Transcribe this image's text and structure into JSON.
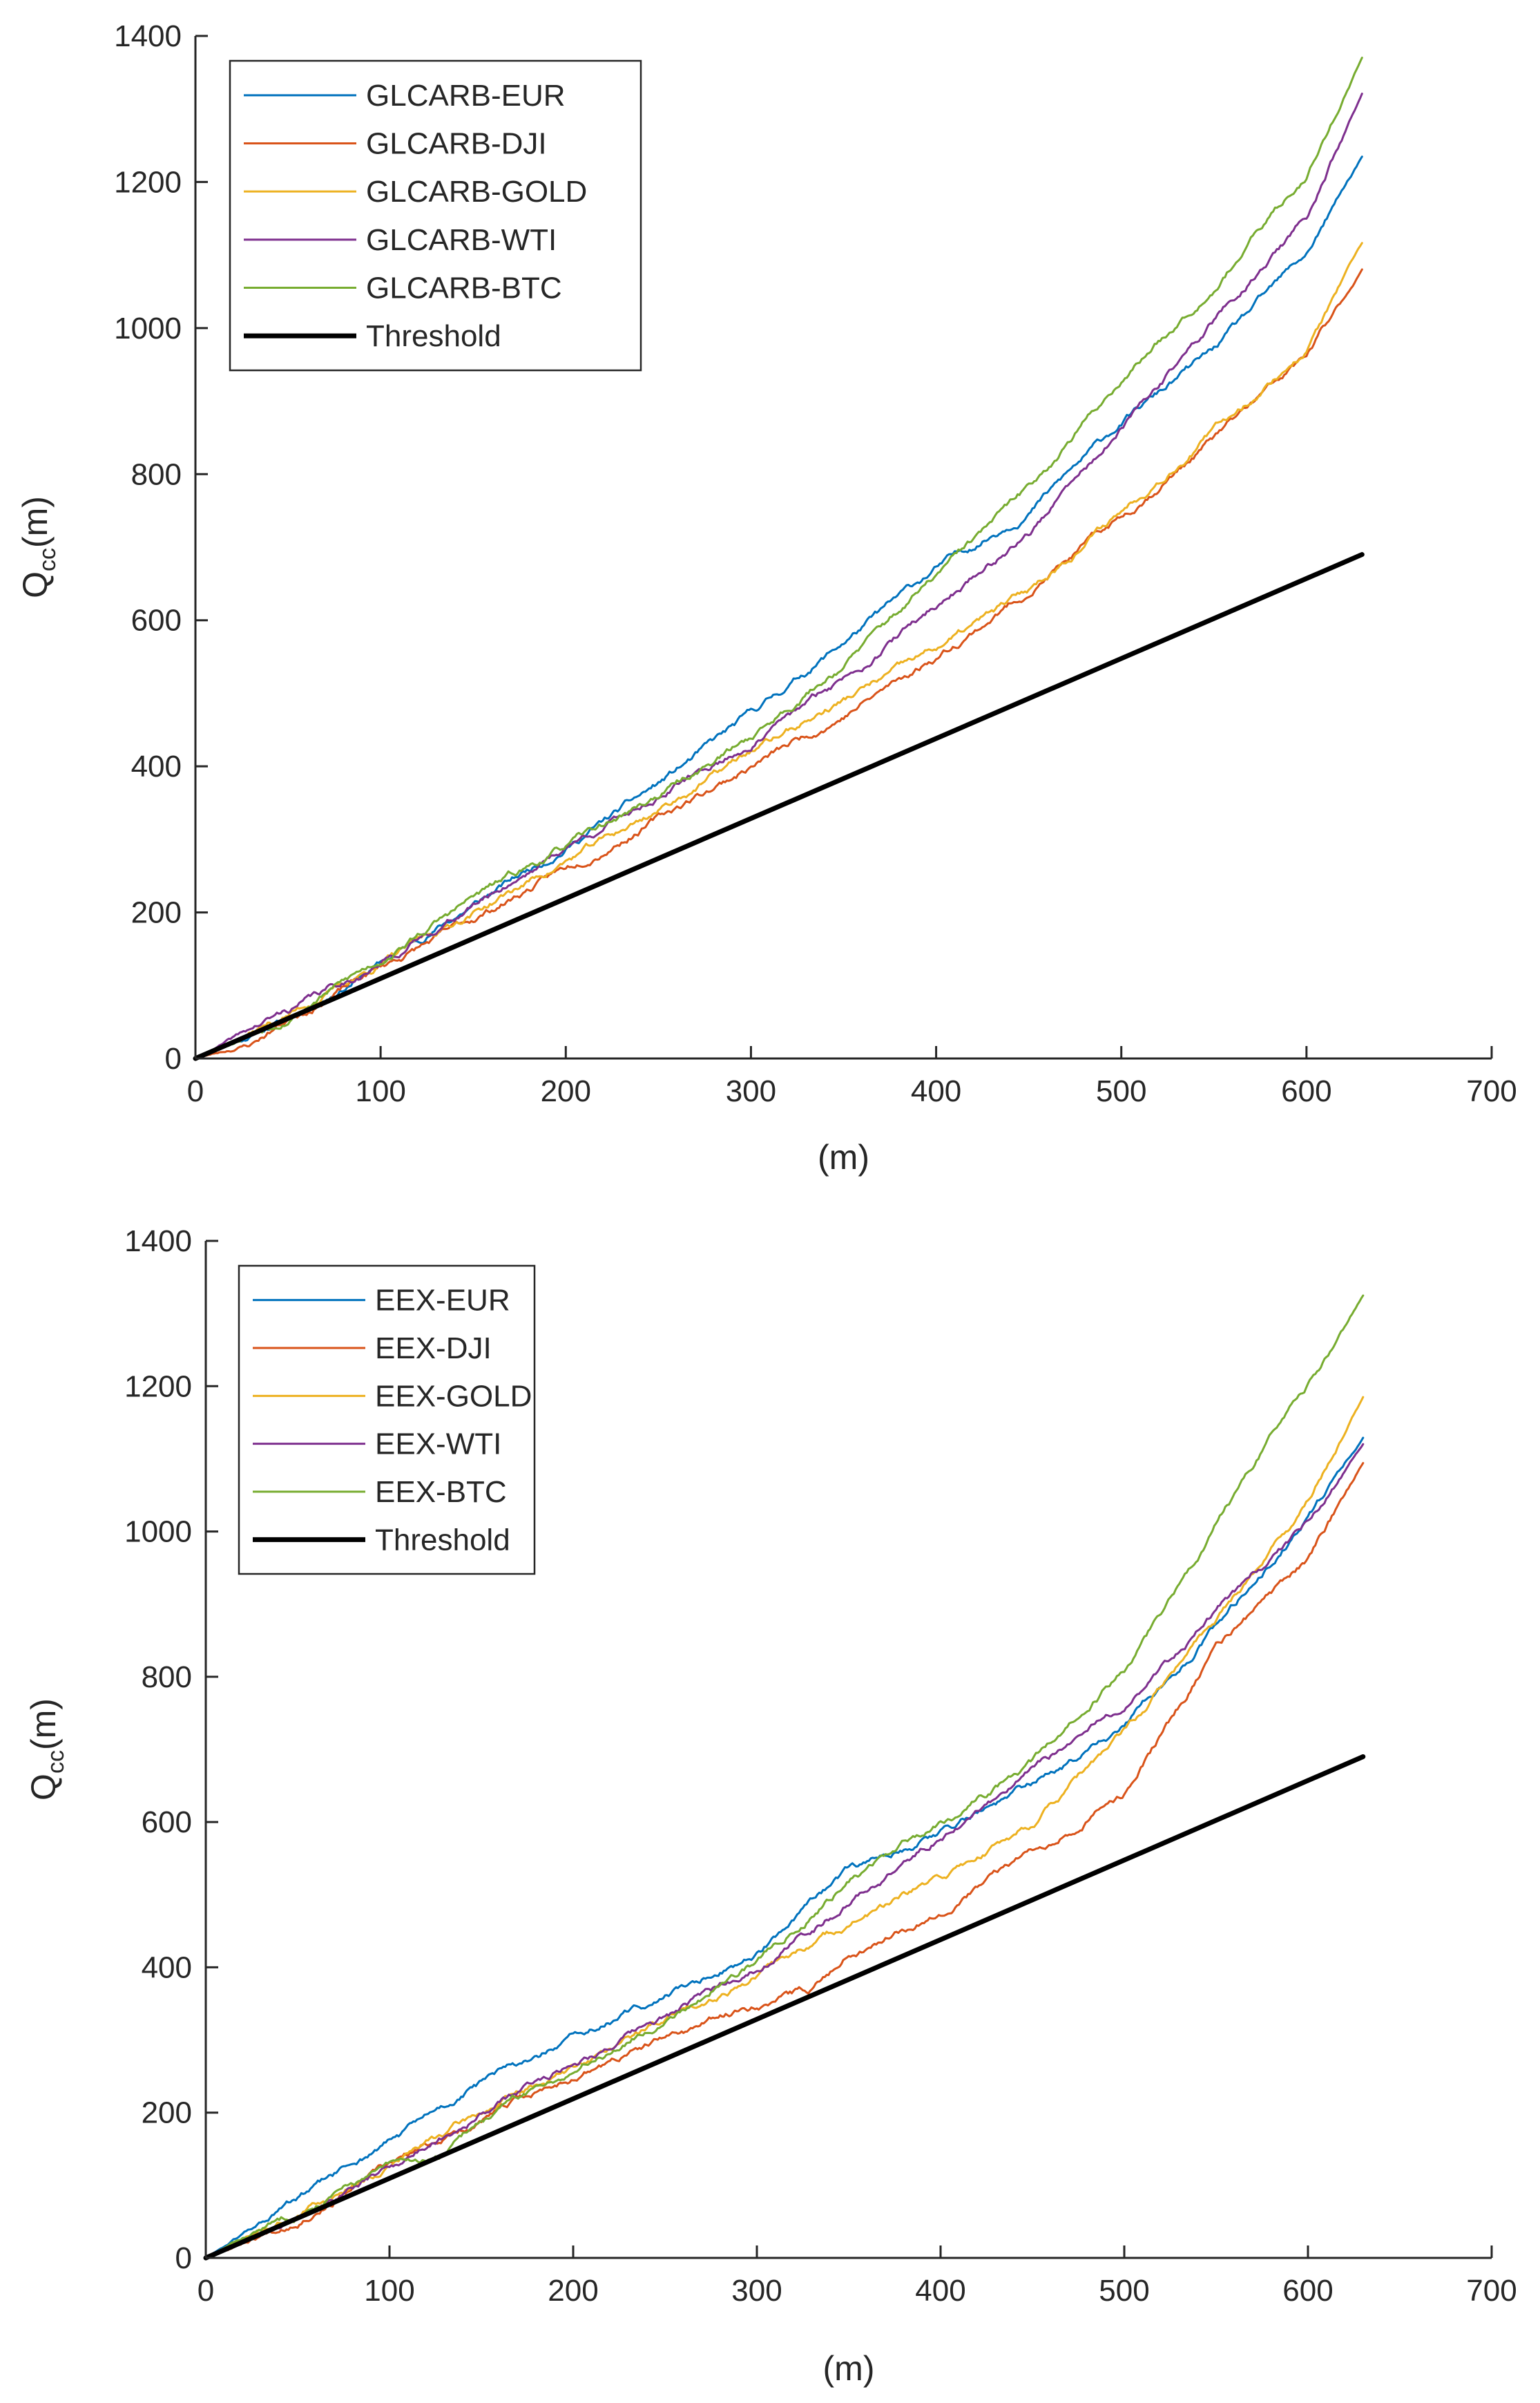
{
  "chart_data": [
    {
      "type": "line",
      "title": "",
      "xlabel": "(m)",
      "ylabel": {
        "main": "Q",
        "sub": "cc",
        "suffix": "(m)"
      },
      "xlim": [
        0,
        700
      ],
      "ylim": [
        0,
        1400
      ],
      "xticks": [
        "0",
        "100",
        "200",
        "300",
        "400",
        "500",
        "600",
        "700"
      ],
      "yticks": [
        "0",
        "200",
        "400",
        "600",
        "800",
        "1000",
        "1200",
        "1400"
      ],
      "grid": false,
      "legend_position": "top-left",
      "series": [
        {
          "name": "GLCARB-EUR",
          "color": "#0072BD",
          "seed": 11,
          "points": [
            [
              0,
              0
            ],
            [
              50,
              55
            ],
            [
              100,
              130
            ],
            [
              150,
              210
            ],
            [
              200,
              290
            ],
            [
              250,
              375
            ],
            [
              300,
              470
            ],
            [
              350,
              570
            ],
            [
              400,
              670
            ],
            [
              450,
              750
            ],
            [
              500,
              870
            ],
            [
              550,
              970
            ],
            [
              600,
              1100
            ],
            [
              630,
              1235
            ]
          ]
        },
        {
          "name": "GLCARB-DJI",
          "color": "#D95319",
          "seed": 23,
          "points": [
            [
              0,
              0
            ],
            [
              30,
              20
            ],
            [
              50,
              55
            ],
            [
              100,
              125
            ],
            [
              150,
              190
            ],
            [
              200,
              260
            ],
            [
              250,
              330
            ],
            [
              300,
              400
            ],
            [
              350,
              470
            ],
            [
              400,
              550
            ],
            [
              450,
              640
            ],
            [
              500,
              740
            ],
            [
              550,
              850
            ],
            [
              600,
              960
            ],
            [
              630,
              1080
            ]
          ]
        },
        {
          "name": "GLCARB-GOLD",
          "color": "#EDB120",
          "seed": 37,
          "points": [
            [
              0,
              0
            ],
            [
              50,
              60
            ],
            [
              100,
              130
            ],
            [
              150,
              200
            ],
            [
              200,
              270
            ],
            [
              250,
              340
            ],
            [
              300,
              420
            ],
            [
              350,
              490
            ],
            [
              400,
              560
            ],
            [
              450,
              640
            ],
            [
              500,
              750
            ],
            [
              550,
              860
            ],
            [
              600,
              970
            ],
            [
              630,
              1115
            ]
          ]
        },
        {
          "name": "GLCARB-WTI",
          "color": "#7E2F8E",
          "seed": 41,
          "points": [
            [
              0,
              0
            ],
            [
              50,
              65
            ],
            [
              100,
              130
            ],
            [
              150,
              210
            ],
            [
              200,
              290
            ],
            [
              250,
              360
            ],
            [
              300,
              430
            ],
            [
              350,
              520
            ],
            [
              400,
              620
            ],
            [
              450,
              720
            ],
            [
              500,
              860
            ],
            [
              550,
              1010
            ],
            [
              600,
              1150
            ],
            [
              630,
              1320
            ]
          ]
        },
        {
          "name": "GLCARB-BTC",
          "color": "#77AC30",
          "seed": 53,
          "points": [
            [
              0,
              0
            ],
            [
              50,
              60
            ],
            [
              100,
              135
            ],
            [
              150,
              220
            ],
            [
              200,
              290
            ],
            [
              250,
              360
            ],
            [
              300,
              440
            ],
            [
              350,
              540
            ],
            [
              400,
              660
            ],
            [
              450,
              780
            ],
            [
              500,
              930
            ],
            [
              550,
              1060
            ],
            [
              600,
              1210
            ],
            [
              630,
              1370
            ]
          ]
        },
        {
          "name": "Threshold",
          "color": "#000000",
          "threshold": true,
          "points": [
            [
              0,
              0
            ],
            [
              630,
              690
            ]
          ]
        }
      ]
    },
    {
      "type": "line",
      "title": "",
      "xlabel": "(m)",
      "ylabel": {
        "main": "Q",
        "sub": "cc",
        "suffix": "(m)"
      },
      "xlim": [
        0,
        700
      ],
      "ylim": [
        0,
        1400
      ],
      "xticks": [
        "0",
        "100",
        "200",
        "300",
        "400",
        "500",
        "600",
        "700"
      ],
      "yticks": [
        "0",
        "200",
        "400",
        "600",
        "800",
        "1000",
        "1200",
        "1400"
      ],
      "grid": false,
      "legend_position": "top-left",
      "series": [
        {
          "name": "EEX-EUR",
          "color": "#0072BD",
          "seed": 61,
          "points": [
            [
              0,
              0
            ],
            [
              50,
              80
            ],
            [
              100,
              160
            ],
            [
              150,
              240
            ],
            [
              200,
              300
            ],
            [
              250,
              360
            ],
            [
              300,
              420
            ],
            [
              350,
              530
            ],
            [
              400,
              590
            ],
            [
              450,
              650
            ],
            [
              500,
              730
            ],
            [
              550,
              870
            ],
            [
              600,
              1020
            ],
            [
              630,
              1130
            ]
          ]
        },
        {
          "name": "EEX-DJI",
          "color": "#D95319",
          "seed": 67,
          "points": [
            [
              0,
              0
            ],
            [
              50,
              55
            ],
            [
              100,
              125
            ],
            [
              150,
              190
            ],
            [
              200,
              250
            ],
            [
              250,
              300
            ],
            [
              300,
              350
            ],
            [
              330,
              370
            ],
            [
              350,
              420
            ],
            [
              400,
              480
            ],
            [
              450,
              560
            ],
            [
              500,
              640
            ],
            [
              550,
              840
            ],
            [
              600,
              960
            ],
            [
              630,
              1095
            ]
          ]
        },
        {
          "name": "EEX-GOLD",
          "color": "#EDB120",
          "seed": 71,
          "points": [
            [
              0,
              0
            ],
            [
              50,
              60
            ],
            [
              100,
              130
            ],
            [
              150,
              200
            ],
            [
              200,
              260
            ],
            [
              250,
              330
            ],
            [
              300,
              390
            ],
            [
              350,
              460
            ],
            [
              400,
              520
            ],
            [
              450,
              600
            ],
            [
              500,
              720
            ],
            [
              550,
              880
            ],
            [
              600,
              1040
            ],
            [
              630,
              1185
            ]
          ]
        },
        {
          "name": "EEX-WTI",
          "color": "#7E2F8E",
          "seed": 79,
          "points": [
            [
              0,
              0
            ],
            [
              50,
              60
            ],
            [
              100,
              125
            ],
            [
              150,
              200
            ],
            [
              200,
              270
            ],
            [
              250,
              330
            ],
            [
              300,
              400
            ],
            [
              350,
              490
            ],
            [
              400,
              580
            ],
            [
              450,
              670
            ],
            [
              500,
              760
            ],
            [
              550,
              890
            ],
            [
              600,
              1010
            ],
            [
              630,
              1120
            ]
          ]
        },
        {
          "name": "EEX-BTC",
          "color": "#77AC30",
          "seed": 83,
          "points": [
            [
              0,
              0
            ],
            [
              50,
              65
            ],
            [
              100,
              125
            ],
            [
              130,
              140
            ],
            [
              150,
              190
            ],
            [
              200,
              260
            ],
            [
              250,
              330
            ],
            [
              300,
              410
            ],
            [
              350,
              520
            ],
            [
              400,
              600
            ],
            [
              450,
              680
            ],
            [
              500,
              810
            ],
            [
              550,
              1010
            ],
            [
              600,
              1200
            ],
            [
              630,
              1325
            ]
          ]
        },
        {
          "name": "Threshold",
          "color": "#000000",
          "threshold": true,
          "points": [
            [
              0,
              0
            ],
            [
              630,
              690
            ]
          ]
        }
      ]
    }
  ]
}
